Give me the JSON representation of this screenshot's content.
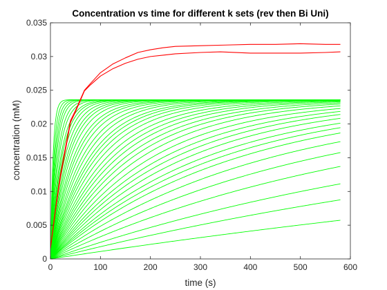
{
  "chart_data": {
    "type": "line",
    "title": "Concentration vs time for different k sets (rev then Bi Uni)",
    "xlabel": "time (s)",
    "ylabel": "concentration (mM)",
    "xlim": [
      0,
      600
    ],
    "ylim": [
      0,
      0.035
    ],
    "xticks": [
      "0",
      "100",
      "200",
      "300",
      "400",
      "500",
      "600"
    ],
    "yticks": [
      "0",
      "0.005",
      "0.01",
      "0.015",
      "0.02",
      "0.025",
      "0.03",
      "0.035"
    ],
    "grid": false,
    "legend": "none",
    "colors": {
      "green_series": "#00ff00",
      "red_series": "#ff0000",
      "axes": "#262626"
    },
    "green_family": {
      "t_start": 0,
      "t_end": 580,
      "start_value": 0,
      "plateau": 0.0236,
      "rates_per_s": [
        0.2,
        0.15,
        0.12,
        0.1,
        0.085,
        0.07,
        0.06,
        0.05,
        0.045,
        0.04,
        0.035,
        0.031,
        0.028,
        0.025,
        0.022,
        0.02,
        0.018,
        0.016,
        0.0145,
        0.013,
        0.012,
        0.011,
        0.01,
        0.009,
        0.0082,
        0.0075,
        0.0068,
        0.0062,
        0.0056,
        0.005,
        0.0045,
        0.0041,
        0.0037,
        0.0033,
        0.003,
        0.0027,
        0.0023,
        0.0019,
        0.0015,
        0.0011,
        0.0008,
        0.00048
      ]
    },
    "series": [
      {
        "color": "#ff0000",
        "x": [
          0,
          5,
          12,
          20,
          30,
          40,
          50,
          68,
          80,
          100,
          125,
          150,
          175,
          200,
          225,
          250,
          300,
          350,
          400,
          450,
          500,
          550,
          580
        ],
        "y": [
          0.0016,
          0.0045,
          0.0085,
          0.0125,
          0.0165,
          0.0205,
          0.022,
          0.025,
          0.026,
          0.0276,
          0.0289,
          0.0298,
          0.0306,
          0.031,
          0.0313,
          0.0315,
          0.0316,
          0.0317,
          0.0318,
          0.0318,
          0.0319,
          0.0318,
          0.0318
        ]
      },
      {
        "color": "#ff0000",
        "x": [
          0,
          5,
          12,
          20,
          30,
          40,
          50,
          68,
          80,
          100,
          125,
          150,
          175,
          200,
          225,
          250,
          300,
          340,
          400,
          450,
          500,
          550,
          580
        ],
        "y": [
          0.0016,
          0.0043,
          0.0082,
          0.0121,
          0.0161,
          0.0202,
          0.0218,
          0.0249,
          0.0258,
          0.0271,
          0.0282,
          0.029,
          0.0296,
          0.03,
          0.0302,
          0.0304,
          0.0306,
          0.0307,
          0.0305,
          0.0305,
          0.0305,
          0.0306,
          0.0307
        ]
      }
    ]
  }
}
